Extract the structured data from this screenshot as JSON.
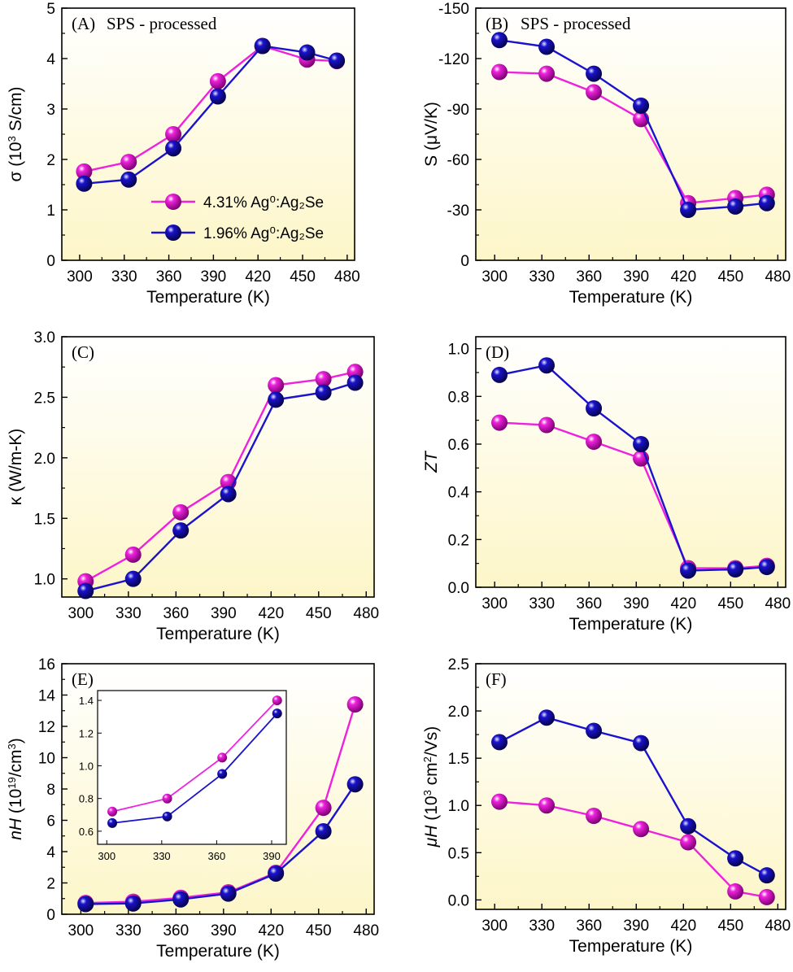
{
  "colors": {
    "pink": "#ee22dd",
    "blue": "#1a12cc",
    "bg_top": "#ffffff",
    "bg_bottom": "#fdf6c8"
  },
  "legend": [
    "4.31% Ag⁰:Ag₂Se",
    "1.96% Ag⁰:Ag₂Se"
  ],
  "chart_data": [
    {
      "id": "A",
      "type": "line",
      "label": "(A)",
      "note": "SPS - processed",
      "xlabel": "Temperature (K)",
      "ylabel": "σ (10³ S/cm)",
      "xlim": [
        288,
        485
      ],
      "ylim": [
        0,
        5
      ],
      "xticks": [
        300,
        330,
        360,
        390,
        420,
        450,
        480
      ],
      "yticks": [
        0,
        1,
        2,
        3,
        4,
        5
      ],
      "x": [
        303,
        333,
        363,
        393,
        423,
        453,
        473
      ],
      "series": [
        {
          "name": "4.31% Ag⁰:Ag₂Se",
          "color": "pink",
          "values": [
            1.76,
            1.95,
            2.5,
            3.55,
            4.25,
            3.98,
            3.95
          ]
        },
        {
          "name": "1.96% Ag⁰:Ag₂Se",
          "color": "blue",
          "values": [
            1.52,
            1.6,
            2.22,
            3.25,
            4.25,
            4.12,
            3.96
          ]
        }
      ]
    },
    {
      "id": "B",
      "type": "line",
      "label": "(B)",
      "note": "SPS - processed",
      "xlabel": "Temperature (K)",
      "ylabel": "S (μV/K)",
      "xlim": [
        288,
        485
      ],
      "ylim": [
        0,
        -150
      ],
      "reversed_y": true,
      "xticks": [
        300,
        330,
        360,
        390,
        420,
        450,
        480
      ],
      "yticks": [
        0,
        -30,
        -60,
        -90,
        -120,
        -150
      ],
      "x": [
        303,
        333,
        363,
        393,
        423,
        453,
        473
      ],
      "series": [
        {
          "color": "pink",
          "values": [
            -112,
            -111,
            -100,
            -84,
            -34,
            -37,
            -39
          ]
        },
        {
          "color": "blue",
          "values": [
            -131,
            -127,
            -111,
            -92,
            -30,
            -32,
            -34
          ]
        }
      ]
    },
    {
      "id": "C",
      "type": "line",
      "label": "(C)",
      "xlabel": "Temperature (K)",
      "ylabel": "κ (W/m-K)",
      "xlim": [
        288,
        485
      ],
      "ylim": [
        0.85,
        3.0
      ],
      "xticks": [
        300,
        330,
        360,
        390,
        420,
        450,
        480
      ],
      "yticks": [
        1.0,
        1.5,
        2.0,
        2.5,
        3.0
      ],
      "x": [
        303,
        333,
        363,
        393,
        423,
        453,
        473
      ],
      "series": [
        {
          "color": "pink",
          "values": [
            0.98,
            1.2,
            1.55,
            1.8,
            2.6,
            2.65,
            2.71
          ]
        },
        {
          "color": "blue",
          "values": [
            0.9,
            1.0,
            1.4,
            1.7,
            2.48,
            2.54,
            2.62
          ]
        }
      ]
    },
    {
      "id": "D",
      "type": "line",
      "label": "(D)",
      "xlabel": "Temperature (K)",
      "ylabel": "ZT",
      "xlim": [
        288,
        485
      ],
      "ylim": [
        0,
        1.05
      ],
      "xticks": [
        300,
        330,
        360,
        390,
        420,
        450,
        480
      ],
      "yticks": [
        0.0,
        0.2,
        0.4,
        0.6,
        0.8,
        1.0
      ],
      "x": [
        303,
        333,
        363,
        393,
        423,
        453,
        473
      ],
      "series": [
        {
          "color": "pink",
          "values": [
            0.69,
            0.68,
            0.61,
            0.54,
            0.08,
            0.08,
            0.09
          ]
        },
        {
          "color": "blue",
          "values": [
            0.89,
            0.93,
            0.75,
            0.6,
            0.07,
            0.075,
            0.085
          ]
        }
      ]
    },
    {
      "id": "E",
      "type": "line",
      "label": "(E)",
      "xlabel": "Temperature (K)",
      "ylabel": "nH (10¹⁹/cm³)",
      "xlim": [
        288,
        485
      ],
      "ylim": [
        0,
        16
      ],
      "xticks": [
        300,
        330,
        360,
        390,
        420,
        450,
        480
      ],
      "yticks": [
        0,
        2,
        4,
        6,
        8,
        10,
        12,
        14,
        16
      ],
      "x": [
        303,
        333,
        363,
        393,
        423,
        453,
        473
      ],
      "series": [
        {
          "color": "pink",
          "values": [
            0.72,
            0.8,
            1.05,
            1.4,
            2.65,
            6.8,
            13.4
          ]
        },
        {
          "color": "blue",
          "values": [
            0.65,
            0.69,
            0.95,
            1.32,
            2.6,
            5.3,
            8.3
          ]
        }
      ],
      "inset": {
        "xlim": [
          295,
          398
        ],
        "ylim": [
          0.52,
          1.46
        ],
        "xticks": [
          300,
          330,
          360,
          390
        ],
        "yticks": [
          0.6,
          0.8,
          1.0,
          1.2,
          1.4
        ],
        "x": [
          303,
          333,
          363,
          393
        ],
        "series": [
          {
            "color": "pink",
            "values": [
              0.72,
              0.8,
              1.05,
              1.4
            ]
          },
          {
            "color": "blue",
            "values": [
              0.65,
              0.69,
              0.95,
              1.32
            ]
          }
        ]
      }
    },
    {
      "id": "F",
      "type": "line",
      "label": "(F)",
      "xlabel": "Temperature (K)",
      "ylabel": "μH (10³ cm²/Vs)",
      "xlim": [
        288,
        485
      ],
      "ylim": [
        -0.1,
        2.5
      ],
      "xticks": [
        300,
        330,
        360,
        390,
        420,
        450,
        480
      ],
      "yticks": [
        0.0,
        0.5,
        1.0,
        1.5,
        2.0,
        2.5
      ],
      "x": [
        303,
        333,
        363,
        393,
        423,
        453,
        473
      ],
      "series": [
        {
          "color": "pink",
          "values": [
            1.04,
            1.0,
            0.89,
            0.75,
            0.61,
            0.09,
            0.03
          ]
        },
        {
          "color": "blue",
          "values": [
            1.67,
            1.93,
            1.79,
            1.66,
            0.78,
            0.44,
            0.26
          ]
        }
      ]
    }
  ]
}
